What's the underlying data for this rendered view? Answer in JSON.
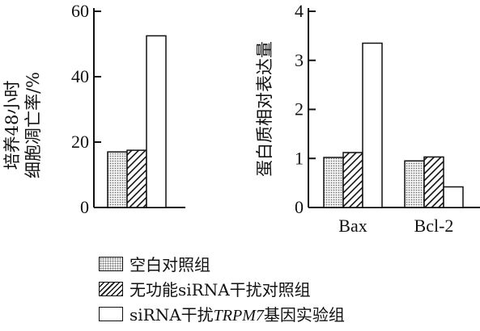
{
  "chart_data": [
    {
      "type": "bar",
      "ylabel_line1": "培养48小时",
      "ylabel_line2": "细胞凋亡率/%",
      "ylim": [
        0,
        60
      ],
      "yticks": [
        0,
        20,
        40,
        60
      ],
      "categories": [
        ""
      ],
      "series": [
        {
          "name": "空白对照组",
          "values": [
            17
          ]
        },
        {
          "name": "无功能siRNA干扰对照组",
          "values": [
            17.5
          ]
        },
        {
          "name": "siRNA干扰TRPM7基因实验组",
          "values": [
            52.5
          ]
        }
      ]
    },
    {
      "type": "bar",
      "ylabel": "蛋白质相对表达量",
      "ylim": [
        0,
        4
      ],
      "yticks": [
        0,
        1,
        2,
        3,
        4
      ],
      "categories": [
        "Bax",
        "Bcl-2"
      ],
      "series": [
        {
          "name": "空白对照组",
          "values": [
            1.02,
            0.95
          ]
        },
        {
          "name": "无功能siRNA干扰对照组",
          "values": [
            1.12,
            1.03
          ]
        },
        {
          "name": "siRNA干扰TRPM7基因实验组",
          "values": [
            3.35,
            0.42
          ]
        }
      ]
    }
  ],
  "legend": {
    "items": [
      {
        "label": "空白对照组",
        "pattern": "dots"
      },
      {
        "label": "无功能siRNA干扰对照组",
        "pattern": "hatch"
      },
      {
        "label_prefix": "siRNA干扰",
        "label_italic": "TRPM7",
        "label_suffix": "基因实验组",
        "pattern": "empty"
      }
    ]
  }
}
